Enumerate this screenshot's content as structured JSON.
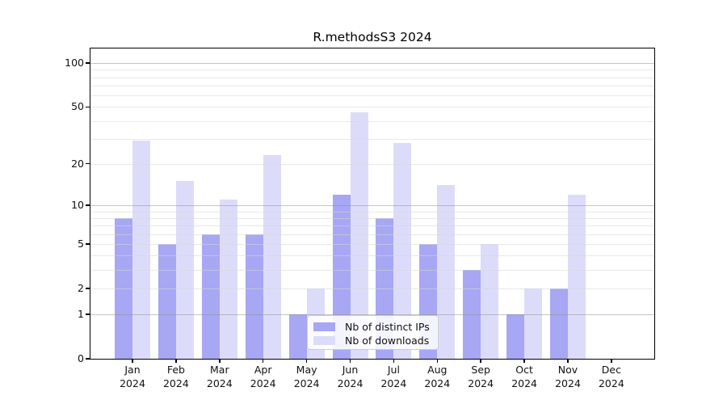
{
  "chart_data": {
    "type": "bar",
    "title": "R.methodsS3 2024",
    "x_months": [
      "Jan",
      "Feb",
      "Mar",
      "Apr",
      "May",
      "Jun",
      "Jul",
      "Aug",
      "Sep",
      "Oct",
      "Nov",
      "Dec"
    ],
    "x_year": "2024",
    "series": [
      {
        "name": "Nb of distinct IPs",
        "color": "#a7a7f4",
        "values": [
          8,
          5,
          6,
          6,
          1,
          12,
          8,
          5,
          3,
          1,
          2,
          0
        ]
      },
      {
        "name": "Nb of downloads",
        "color": "#dcdcfa",
        "values": [
          29,
          15,
          11,
          23,
          2,
          46,
          28,
          14,
          5,
          2,
          12,
          0
        ]
      }
    ],
    "yscale": "log(1+x)",
    "ylim": [
      0,
      121
    ],
    "y_ticks": [
      100,
      50,
      20,
      10,
      5,
      2,
      1,
      0
    ],
    "y_major_gridlines": [
      1,
      10,
      100
    ],
    "y_minor_gridlines": [
      2,
      3,
      4,
      5,
      6,
      7,
      8,
      9,
      20,
      30,
      40,
      50,
      60,
      70,
      80,
      90
    ],
    "grid": true,
    "legend_position": "inside lower center-right",
    "xlabel": "",
    "ylabel": ""
  },
  "colors": {
    "background": "#ffffff",
    "spine": "#000000",
    "tick_text": "#111111",
    "legend_border": "#cccccc"
  }
}
